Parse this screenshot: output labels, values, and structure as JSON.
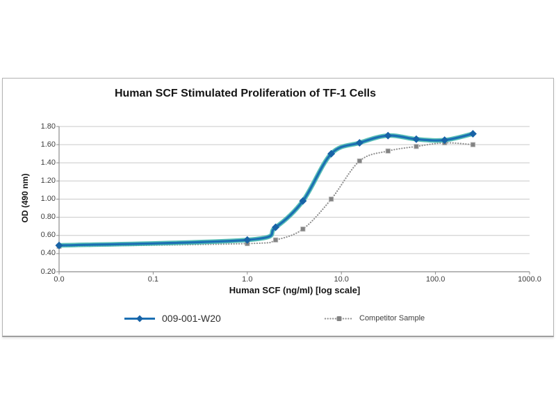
{
  "chart_data": {
    "type": "line",
    "title": "Human SCF Stimulated Proliferation of TF-1 Cells",
    "xlabel": "Human SCF (ng/ml) [log scale]",
    "ylabel": "OD (490 nm)",
    "x_scale": "log",
    "x_tick_labels": [
      "0.0",
      "0.1",
      "1.0",
      "10.0",
      "100.0",
      "1000.0"
    ],
    "y_tick_labels": [
      "0.20",
      "0.40",
      "0.60",
      "0.80",
      "1.00",
      "1.20",
      "1.40",
      "1.60",
      "1.80"
    ],
    "ylim": [
      0.2,
      1.8
    ],
    "grid": "horizontal",
    "gridline_color": "#c9c9c9",
    "axis_color": "#8c8c8c",
    "legend_position": "bottom",
    "x": [
      0,
      1.0,
      2.0,
      3.9,
      7.8,
      15.6,
      31.3,
      62.5,
      125,
      250
    ],
    "series": [
      {
        "name": "009-001-W20",
        "marker": "diamond",
        "line_style": "solid",
        "color": "#1b6fb3",
        "glow_color": "#47b8ae",
        "marker_color": "#1863a6",
        "values": [
          0.49,
          0.55,
          0.69,
          0.98,
          1.5,
          1.62,
          1.7,
          1.66,
          1.65,
          1.72
        ]
      },
      {
        "name": "Competitor Sample",
        "marker": "square",
        "line_style": "dotted",
        "color": "#8f8f8f",
        "glow_color": "",
        "marker_color": "#838383",
        "values": [
          0.48,
          0.51,
          0.55,
          0.67,
          1.0,
          1.42,
          1.53,
          1.58,
          1.62,
          1.6
        ]
      }
    ]
  }
}
